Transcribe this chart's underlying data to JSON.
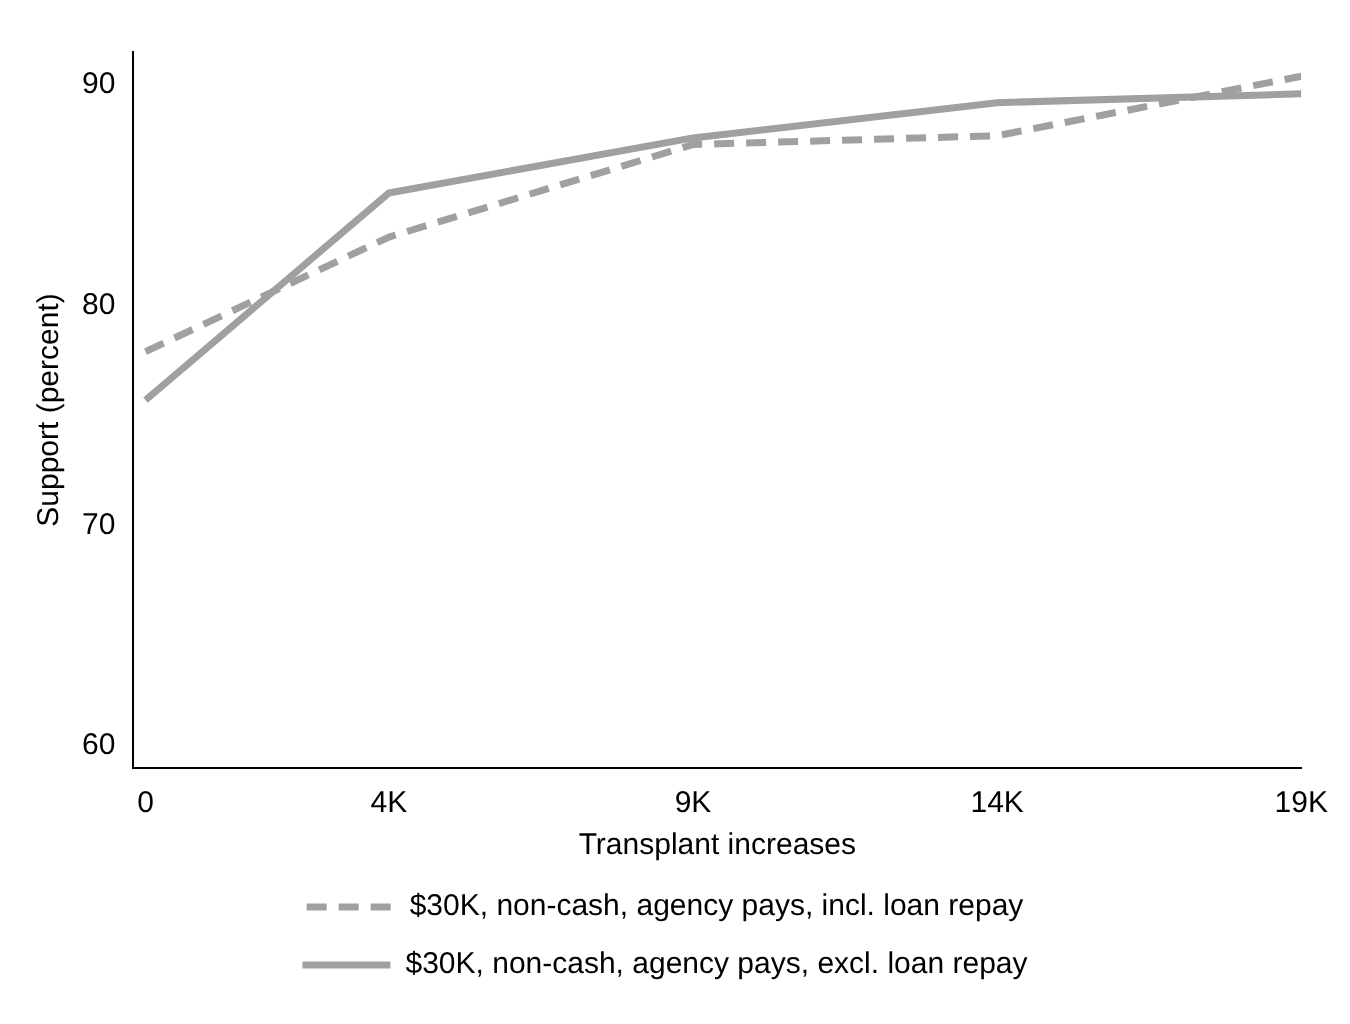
{
  "chart_data": {
    "type": "line",
    "xlabel": "Transplant increases",
    "ylabel": "Support (percent)",
    "x": [
      0,
      4,
      9,
      14,
      19
    ],
    "series": [
      {
        "name": "$30K, non-cash, agency pays, incl. loan repay",
        "color": "#a0a0a0",
        "line_style": "dashed",
        "values": [
          77.9,
          83.1,
          87.3,
          87.7,
          90.4
        ]
      },
      {
        "name": "$30K, non-cash, agency pays, excl. loan repay",
        "color": "#a0a0a0",
        "line_style": "solid",
        "values": [
          75.7,
          85.1,
          87.6,
          89.2,
          89.6
        ]
      }
    ],
    "xlim": [
      -0.2,
      19
    ],
    "xticks": [
      0,
      {
        "value": 4,
        "label": "4K"
      },
      {
        "value": 9,
        "label": "9K"
      },
      {
        "value": 14,
        "label": "14K"
      },
      {
        "value": 19,
        "label": "19K"
      }
    ],
    "ylim": [
      59,
      91.5
    ],
    "yticks": [
      60,
      70,
      80,
      90
    ],
    "grid": false,
    "legend": "bottom",
    "marker": "none"
  }
}
